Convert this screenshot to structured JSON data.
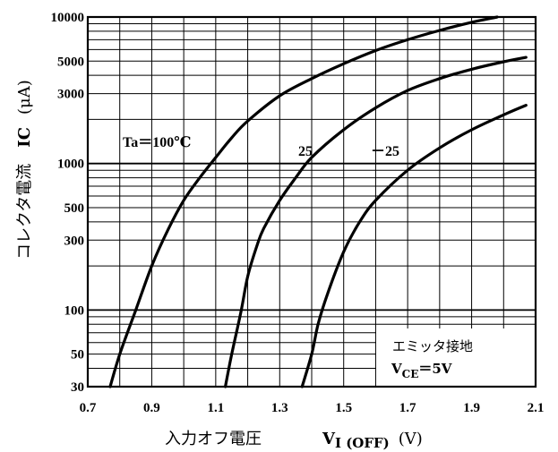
{
  "chart_data": {
    "type": "line",
    "title": "",
    "xlabel": "入力オフ電圧",
    "xlabel_symbol": "V",
    "xlabel_subscript": "I (OFF)",
    "xlabel_unit": "(V)",
    "ylabel": "コレクタ電流",
    "ylabel_symbol": "IC",
    "ylabel_unit": "(μA)",
    "xlim": [
      0.7,
      2.1
    ],
    "ylim": [
      30,
      10000
    ],
    "y_scale": "log",
    "x_ticks": [
      "0.7",
      "0.9",
      "1.1",
      "1.3",
      "1.5",
      "1.7",
      "1.9",
      "2.1"
    ],
    "y_ticks": [
      "30",
      "50",
      "100",
      "300",
      "500",
      "1000",
      "3000",
      "5000",
      "10000"
    ],
    "grid": true,
    "series": [
      {
        "name": "Ta=100℃",
        "label": "Ta＝100℃",
        "x": [
          0.77,
          0.8,
          0.85,
          0.9,
          0.95,
          1.0,
          1.05,
          1.1,
          1.15,
          1.2,
          1.3,
          1.4,
          1.5,
          1.6,
          1.7,
          1.8,
          1.9,
          1.98
        ],
        "y": [
          30,
          50,
          100,
          200,
          350,
          560,
          800,
          1100,
          1500,
          1950,
          2900,
          3800,
          4800,
          5900,
          7000,
          8100,
          9200,
          10000
        ]
      },
      {
        "name": "25",
        "label": "25",
        "x": [
          1.13,
          1.15,
          1.18,
          1.2,
          1.23,
          1.25,
          1.3,
          1.35,
          1.4,
          1.5,
          1.6,
          1.7,
          1.8,
          1.9,
          2.0,
          2.07
        ],
        "y": [
          30,
          50,
          100,
          170,
          280,
          360,
          560,
          800,
          1100,
          1700,
          2400,
          3150,
          3800,
          4400,
          4950,
          5300
        ]
      },
      {
        "name": "-25",
        "label": "－25",
        "x": [
          1.37,
          1.4,
          1.42,
          1.45,
          1.5,
          1.55,
          1.6,
          1.7,
          1.8,
          1.9,
          2.0,
          2.07
        ],
        "y": [
          30,
          50,
          80,
          130,
          250,
          400,
          560,
          900,
          1280,
          1700,
          2150,
          2500
        ]
      }
    ],
    "annotation": {
      "line1": "エミッタ接地",
      "line2_symbol": "V",
      "line2_subscript": "CE",
      "line2_value": "＝5V"
    }
  }
}
